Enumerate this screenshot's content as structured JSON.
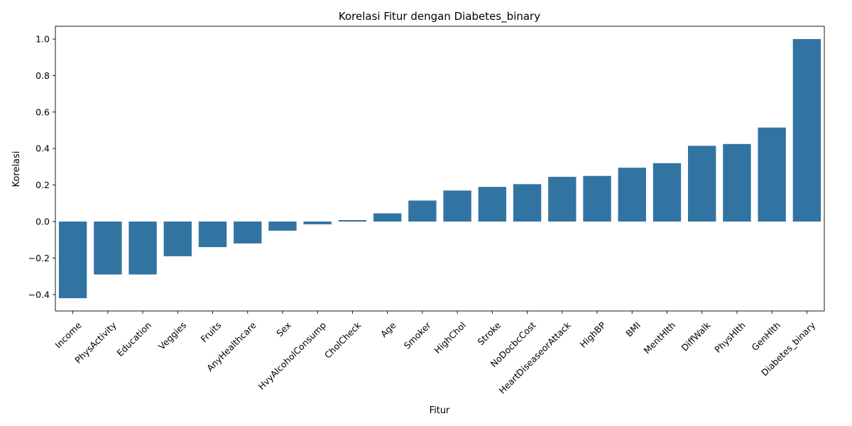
{
  "chart_data": {
    "type": "bar",
    "title": "Korelasi Fitur dengan Diabetes_binary",
    "xlabel": "Fitur",
    "ylabel": "Korelasi",
    "ylim": [
      -0.49,
      1.07
    ],
    "yticks": [
      -0.4,
      -0.2,
      0.0,
      0.2,
      0.4,
      0.6,
      0.8,
      1.0
    ],
    "ytick_labels": [
      "−0.4",
      "−0.2",
      "0.0",
      "0.2",
      "0.4",
      "0.6",
      "0.8",
      "1.0"
    ],
    "bar_color": "#3274a1",
    "grid": false,
    "legend": "none",
    "categories": [
      "Income",
      "PhysActivity",
      "Education",
      "Veggies",
      "Fruits",
      "AnyHealthcare",
      "Sex",
      "HvyAlcoholConsump",
      "CholCheck",
      "Age",
      "Smoker",
      "HighChol",
      "Stroke",
      "NoDocbcCost",
      "HeartDiseaseorAttack",
      "HighBP",
      "BMI",
      "MentHlth",
      "DiffWalk",
      "PhysHlth",
      "GenHlth",
      "Diabetes_binary"
    ],
    "values": [
      -0.42,
      -0.29,
      -0.29,
      -0.19,
      -0.14,
      -0.12,
      -0.05,
      -0.015,
      0.008,
      0.045,
      0.115,
      0.17,
      0.19,
      0.205,
      0.245,
      0.25,
      0.295,
      0.32,
      0.415,
      0.425,
      0.515,
      1.0
    ]
  }
}
